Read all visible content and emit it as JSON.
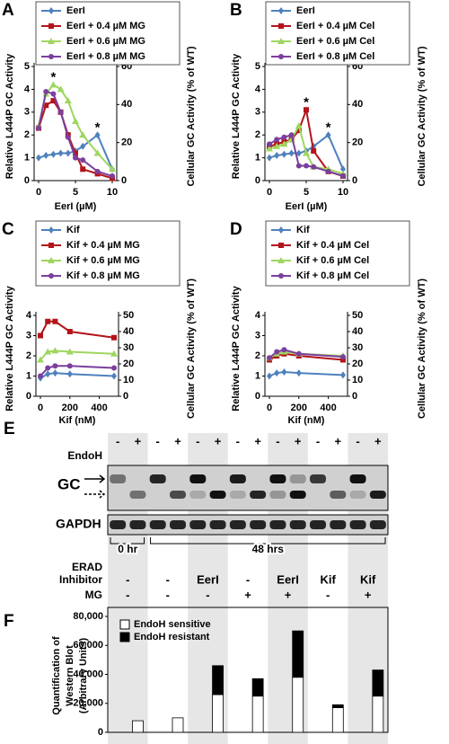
{
  "chart_data": [
    {
      "type": "line",
      "panel": "A",
      "xlabel": "EerI (µM)",
      "ylabel": "Relative L444P GC Activity",
      "y2label": "Cellular GC Activity (% of WT)",
      "x": [
        0,
        1,
        2,
        3,
        4,
        5,
        6,
        8,
        10
      ],
      "xlim": [
        0,
        10
      ],
      "xticks": [
        0,
        5,
        10
      ],
      "ylim": [
        0,
        5
      ],
      "yticks": [
        0,
        1,
        2,
        3,
        4,
        5
      ],
      "y2lim": [
        0,
        60
      ],
      "y2ticks": [
        0,
        20,
        40,
        60
      ],
      "legend": "upper left",
      "series": [
        {
          "name": "EerI",
          "color": "#4f81bd",
          "values": [
            1.0,
            1.1,
            1.15,
            1.2,
            1.2,
            1.3,
            1.5,
            2.0,
            0.5
          ]
        },
        {
          "name": "EerI + 0.4 µM MG",
          "color": "#b3141b",
          "values": [
            2.3,
            3.3,
            3.5,
            3.0,
            2.0,
            1.2,
            0.5,
            0.3,
            0.1
          ]
        },
        {
          "name": "EerI + 0.6 µM MG",
          "color": "#9fd65f",
          "values": [
            2.4,
            3.8,
            4.2,
            4.0,
            3.5,
            2.6,
            2.0,
            1.2,
            0.5
          ]
        },
        {
          "name": "EerI + 0.8 µM MG",
          "color": "#7b3f9e",
          "values": [
            2.3,
            3.9,
            3.8,
            3.0,
            1.9,
            1.0,
            0.9,
            0.4,
            0.2
          ]
        }
      ],
      "annotations": [
        {
          "text": "*",
          "x": 2,
          "y": 4.5
        },
        {
          "text": "*",
          "x": 8,
          "y": 2.3
        }
      ]
    },
    {
      "type": "line",
      "panel": "B",
      "xlabel": "EerI (µM)",
      "ylabel": "Relative L444P GC Activity",
      "y2label": "Cellular GC Activity (% of WT)",
      "x": [
        0,
        1,
        2,
        3,
        4,
        5,
        6,
        8,
        10
      ],
      "xlim": [
        0,
        10
      ],
      "xticks": [
        0,
        5,
        10
      ],
      "ylim": [
        0,
        5
      ],
      "yticks": [
        0,
        1,
        2,
        3,
        4,
        5
      ],
      "y2lim": [
        0,
        60
      ],
      "y2ticks": [
        0,
        20,
        40,
        60
      ],
      "legend": "upper left",
      "series": [
        {
          "name": "EerI",
          "color": "#4f81bd",
          "values": [
            1.0,
            1.1,
            1.15,
            1.2,
            1.2,
            1.3,
            1.5,
            2.0,
            0.5
          ]
        },
        {
          "name": "EerI + 0.4 µM Cel",
          "color": "#b3141b",
          "values": [
            1.5,
            1.6,
            1.7,
            1.8,
            2.2,
            3.1,
            1.3,
            0.4,
            0.2
          ]
        },
        {
          "name": "EerI + 0.6 µM Cel",
          "color": "#9fd65f",
          "values": [
            1.4,
            1.5,
            1.6,
            1.8,
            2.4,
            1.2,
            0.6,
            0.5,
            0.3
          ]
        },
        {
          "name": "EerI + 0.8 µM Cel",
          "color": "#7b3f9e",
          "values": [
            1.6,
            1.8,
            1.9,
            2.0,
            0.65,
            0.65,
            0.6,
            0.4,
            0.2
          ]
        }
      ],
      "annotations": [
        {
          "text": "*",
          "x": 5,
          "y": 3.4
        },
        {
          "text": "*",
          "x": 8,
          "y": 2.3
        }
      ]
    },
    {
      "type": "line",
      "panel": "C",
      "xlabel": "Kif (nM)",
      "ylabel": "Relative L444P GC Activity",
      "y2label": "Cellular GC Activity (% of WT)",
      "x": [
        0,
        50,
        100,
        200,
        500
      ],
      "xlim": [
        0,
        500
      ],
      "xticks": [
        0,
        200,
        400
      ],
      "ylim": [
        0,
        4
      ],
      "yticks": [
        0,
        1,
        2,
        3,
        4
      ],
      "y2lim": [
        0,
        50
      ],
      "y2ticks": [
        0,
        10,
        20,
        30,
        40,
        50
      ],
      "legend": "upper left",
      "series": [
        {
          "name": "Kif",
          "color": "#4f81bd",
          "values": [
            0.9,
            1.1,
            1.15,
            1.1,
            1.0
          ]
        },
        {
          "name": "Kif + 0.4 µM MG",
          "color": "#b3141b",
          "values": [
            3.0,
            3.7,
            3.7,
            3.2,
            2.9
          ]
        },
        {
          "name": "Kif + 0.6 µM MG",
          "color": "#9fd65f",
          "values": [
            1.8,
            2.2,
            2.25,
            2.2,
            2.1
          ]
        },
        {
          "name": "Kif + 0.8 µM MG",
          "color": "#7b3f9e",
          "values": [
            1.0,
            1.4,
            1.5,
            1.5,
            1.4
          ]
        }
      ]
    },
    {
      "type": "line",
      "panel": "D",
      "xlabel": "Kif (nM)",
      "ylabel": "Relative L444P GC Activity",
      "y2label": "Cellular GC Activity (% of WT)",
      "x": [
        0,
        50,
        100,
        200,
        500
      ],
      "xlim": [
        0,
        500
      ],
      "xticks": [
        0,
        200,
        400
      ],
      "ylim": [
        0,
        4
      ],
      "yticks": [
        0,
        1,
        2,
        3,
        4
      ],
      "y2lim": [
        0,
        50
      ],
      "y2ticks": [
        0,
        10,
        20,
        30,
        40,
        50
      ],
      "legend": "upper left",
      "series": [
        {
          "name": "Kif",
          "color": "#4f81bd",
          "values": [
            1.0,
            1.15,
            1.2,
            1.15,
            1.05
          ]
        },
        {
          "name": "Kif + 0.4 µM Cel",
          "color": "#b3141b",
          "values": [
            1.8,
            2.0,
            2.1,
            2.0,
            1.8
          ]
        },
        {
          "name": "Kif + 0.6 µM Cel",
          "color": "#9fd65f",
          "values": [
            1.9,
            2.1,
            2.2,
            2.1,
            2.0
          ]
        },
        {
          "name": "Kif + 0.8 µM Cel",
          "color": "#7b3f9e",
          "values": [
            1.9,
            2.2,
            2.3,
            2.1,
            1.95
          ]
        }
      ]
    },
    {
      "type": "bar",
      "stacked": true,
      "panel": "F",
      "ylabel": [
        "Quantification of",
        "Western Blot",
        "(Arbitrary Units)"
      ],
      "categories": [
        null,
        null,
        null,
        null,
        null,
        null,
        null
      ],
      "ylim": [
        0,
        80000
      ],
      "yticks": [
        0,
        {
          "value": 20000,
          "label": "20,000"
        },
        {
          "value": 40000,
          "label": "40,000"
        },
        {
          "value": 60000,
          "label": "60,000"
        },
        {
          "value": 80000,
          "label": "80,000"
        }
      ],
      "legend": "upper left",
      "series": [
        {
          "name": "EndoH sensitive",
          "color": "#ffffff",
          "values": [
            8000,
            10000,
            26000,
            25000,
            38000,
            17000,
            25000
          ]
        },
        {
          "name": "EndoH resistant",
          "color": "#000000",
          "values": [
            0,
            0,
            20000,
            12000,
            32000,
            2000,
            18000
          ]
        }
      ]
    }
  ],
  "blot": {
    "panel": "E",
    "endoh_label": "EndoH",
    "endoh": [
      "-",
      "+",
      "-",
      "+",
      "-",
      "+",
      "-",
      "+",
      "-",
      "+",
      "-",
      "+",
      "-",
      "+"
    ],
    "bands": [
      "GC",
      "GAPDH"
    ],
    "time": [
      "0 hr",
      "48 hrs"
    ],
    "erad_label": [
      "ERAD",
      "Inhibitor"
    ],
    "mg_label": "MG",
    "erad": [
      "-",
      "-",
      "EerI",
      "-",
      "EerI",
      "Kif",
      "Kif"
    ],
    "mg": [
      "-",
      "-",
      "-",
      "+",
      "+",
      "-",
      "+"
    ]
  }
}
